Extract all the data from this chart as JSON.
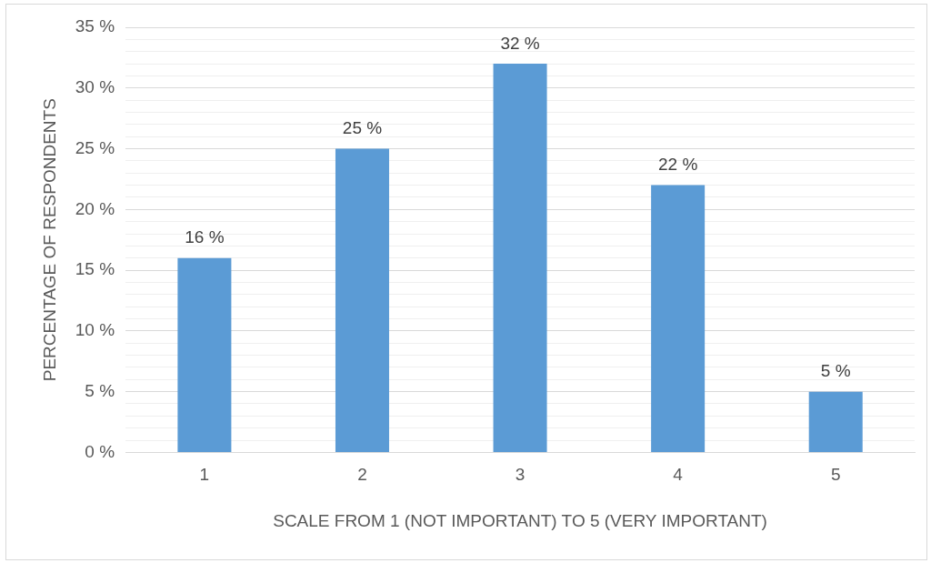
{
  "chart_data": {
    "type": "bar",
    "xlabel": "SCALE FROM 1 (NOT IMPORTANT) TO 5 (VERY IMPORTANT)",
    "ylabel": "PERCENTAGE OF RESPONDENTS",
    "categories": [
      "1",
      "2",
      "3",
      "4",
      "5"
    ],
    "values": [
      16,
      25,
      32,
      22,
      5
    ],
    "value_labels": [
      "16 %",
      "25 %",
      "32 %",
      "22 %",
      "5 %"
    ],
    "color": "#5b9bd5",
    "ylim": [
      0,
      35
    ],
    "yticks": [
      {
        "value": 0,
        "label": "0 %"
      },
      {
        "value": 1,
        "label": null
      },
      {
        "value": 2,
        "label": null
      },
      {
        "value": 3,
        "label": null
      },
      {
        "value": 4,
        "label": null
      },
      {
        "value": 5,
        "label": "5 %"
      },
      {
        "value": 6,
        "label": null
      },
      {
        "value": 7,
        "label": null
      },
      {
        "value": 8,
        "label": null
      },
      {
        "value": 9,
        "label": null
      },
      {
        "value": 10,
        "label": "10 %"
      },
      {
        "value": 11,
        "label": null
      },
      {
        "value": 12,
        "label": null
      },
      {
        "value": 13,
        "label": null
      },
      {
        "value": 14,
        "label": null
      },
      {
        "value": 15,
        "label": "15 %"
      },
      {
        "value": 16,
        "label": null
      },
      {
        "value": 17,
        "label": null
      },
      {
        "value": 18,
        "label": null
      },
      {
        "value": 19,
        "label": null
      },
      {
        "value": 20,
        "label": "20 %"
      },
      {
        "value": 21,
        "label": null
      },
      {
        "value": 22,
        "label": null
      },
      {
        "value": 23,
        "label": null
      },
      {
        "value": 24,
        "label": null
      },
      {
        "value": 25,
        "label": "25 %"
      },
      {
        "value": 26,
        "label": null
      },
      {
        "value": 27,
        "label": null
      },
      {
        "value": 28,
        "label": null
      },
      {
        "value": 29,
        "label": null
      },
      {
        "value": 30,
        "label": "30 %"
      },
      {
        "value": 31,
        "label": null
      },
      {
        "value": 32,
        "label": null
      },
      {
        "value": 33,
        "label": null
      },
      {
        "value": 34,
        "label": null
      },
      {
        "value": 35,
        "label": "35 %"
      }
    ],
    "grid": "y",
    "legend": false
  }
}
